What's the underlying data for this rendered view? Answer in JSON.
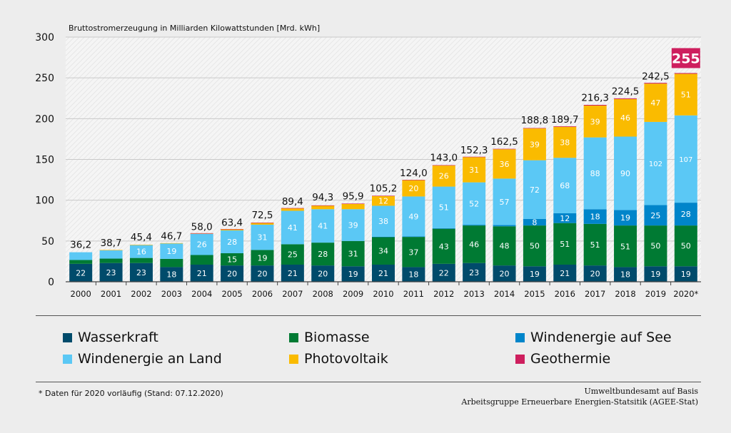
{
  "chart_data": {
    "type": "bar",
    "stacked": true,
    "title": "Bruttostromerzeugung in Milliarden Kilowattstunden [Mrd. kWh]",
    "ylim": [
      0,
      300
    ],
    "yticks": [
      "0",
      "50",
      "100",
      "150",
      "200",
      "250",
      "300"
    ],
    "categories": [
      "2000",
      "2001",
      "2002",
      "2003",
      "2004",
      "2005",
      "2006",
      "2007",
      "2008",
      "2009",
      "2010",
      "2011",
      "2012",
      "2013",
      "2014",
      "2015",
      "2016",
      "2017",
      "2018",
      "2019",
      "2020*"
    ],
    "totals": [
      36.2,
      38.7,
      45.4,
      46.7,
      58.0,
      63.4,
      72.5,
      89.4,
      94.3,
      95.9,
      105.2,
      124.0,
      143.0,
      152.3,
      162.5,
      188.8,
      189.7,
      216.3,
      224.5,
      242.5,
      255
    ],
    "total_labels": [
      "36,2",
      "38,7",
      "45,4",
      "46,7",
      "58,0",
      "63,4",
      "72,5",
      "89,4",
      "94,3",
      "95,9",
      "105,2",
      "124,0",
      "143,0",
      "152,3",
      "162,5",
      "188,8",
      "189,7",
      "216,3",
      "224,5",
      "242,5",
      "255"
    ],
    "series": [
      {
        "name": "Wasserkraft",
        "color": "#004b6b",
        "values": [
          22,
          23,
          23,
          18,
          21,
          20,
          20,
          21,
          20,
          19,
          21,
          18,
          22,
          23,
          20,
          19,
          21,
          20,
          18,
          19,
          19
        ],
        "labels": [
          "22",
          "23",
          "23",
          "18",
          "21",
          "20",
          "20",
          "21",
          "20",
          "19",
          "21",
          "18",
          "22",
          "23",
          "20",
          "19",
          "21",
          "20",
          "18",
          "19",
          "19"
        ]
      },
      {
        "name": "Biomasse",
        "color": "#007a33",
        "values": [
          4.7,
          5.4,
          6.2,
          10.1,
          11.8,
          15,
          19,
          25,
          28,
          31,
          34,
          37,
          43,
          46,
          48,
          50,
          51,
          51,
          51,
          50,
          50
        ],
        "labels": [
          "",
          "",
          "",
          "",
          "",
          "15",
          "19",
          "25",
          "28",
          "31",
          "34",
          "37",
          "43",
          "46",
          "48",
          "50",
          "51",
          "51",
          "51",
          "50",
          "50"
        ]
      },
      {
        "name": "Windenergie auf See",
        "color": "#0085ca",
        "values": [
          0,
          0,
          0,
          0,
          0,
          0,
          0,
          0,
          0,
          0,
          0.2,
          0.6,
          0.7,
          0.9,
          1.5,
          8,
          12,
          18,
          19,
          25,
          28
        ],
        "labels": [
          "",
          "",
          "",
          "",
          "",
          "",
          "",
          "",
          "",
          "",
          "",
          "",
          "",
          "",
          "",
          "8",
          "12",
          "18",
          "19",
          "25",
          "28"
        ]
      },
      {
        "name": "Windenergie an Land",
        "color": "#5bc8f5",
        "values": [
          9.5,
          10.5,
          16,
          19,
          26,
          28,
          31,
          41,
          41,
          39,
          38,
          49,
          51,
          52,
          57,
          72,
          68,
          88,
          90,
          102,
          107
        ],
        "labels": [
          "",
          "",
          "16",
          "19",
          "26",
          "28",
          "31",
          "41",
          "41",
          "39",
          "38",
          "49",
          "51",
          "52",
          "57",
          "72",
          "68",
          "88",
          "90",
          "102",
          "107"
        ]
      },
      {
        "name": "Photovoltaik",
        "color": "#fabb00",
        "values": [
          0,
          0.1,
          0.2,
          0.3,
          0.6,
          1.3,
          2.2,
          3.1,
          4.4,
          6.6,
          12,
          20,
          26,
          31,
          36,
          39,
          38,
          39,
          46,
          47,
          51
        ],
        "labels": [
          "",
          "",
          "",
          "",
          "",
          "",
          "",
          "",
          "",
          "",
          "12",
          "20",
          "26",
          "31",
          "36",
          "39",
          "38",
          "39",
          "46",
          "47",
          "51"
        ]
      },
      {
        "name": "Geothermie",
        "color": "#ce1f5e",
        "values": [
          0,
          0,
          0,
          0,
          0.2,
          0.3,
          0.3,
          0.3,
          0.3,
          0.3,
          0.3,
          0.4,
          0.3,
          0.4,
          0.5,
          0.5,
          0.7,
          0.9,
          0.9,
          0.9,
          0.9
        ],
        "labels": []
      }
    ]
  },
  "legend": [
    {
      "label": "Wasserkraft",
      "color": "#004b6b"
    },
    {
      "label": "Biomasse",
      "color": "#007a33"
    },
    {
      "label": "Windenergie auf See",
      "color": "#0085ca"
    },
    {
      "label": "Windenergie an Land",
      "color": "#5bc8f5"
    },
    {
      "label": "Photovoltaik",
      "color": "#fabb00"
    },
    {
      "label": "Geothermie",
      "color": "#ce1f5e"
    }
  ],
  "footnote": "* Daten für 2020 vorläufig (Stand: 07.12.2020)",
  "source_line1": "Umweltbundesamt auf Basis",
  "source_line2": "Arbeitsgruppe Erneuerbare Energien-Statsitik (AGEE-Stat)"
}
